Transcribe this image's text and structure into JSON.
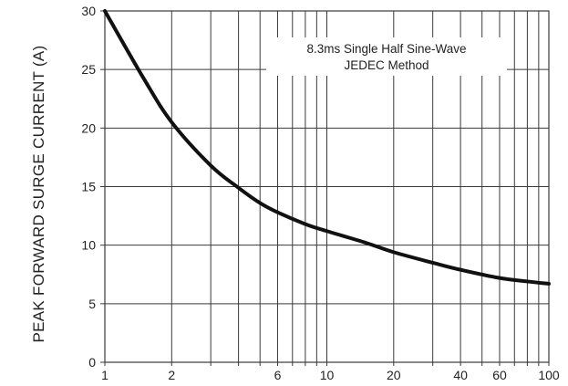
{
  "chart_data": {
    "type": "line",
    "xscale": "log",
    "xlim": [
      1,
      100
    ],
    "ylim": [
      0,
      30
    ],
    "grid": true,
    "ylabel": "PEAK FORWARD SURGE CURRENT (A)",
    "xlabel": "",
    "title": "",
    "x_tick_labels": [
      "1",
      "2",
      "6",
      "10",
      "20",
      "40",
      "60",
      "100"
    ],
    "x_tick_values": [
      1,
      2,
      6,
      10,
      20,
      40,
      60,
      100
    ],
    "y_tick_labels": [
      "0",
      "5",
      "10",
      "15",
      "20",
      "25",
      "30"
    ],
    "y_tick_values": [
      0,
      5,
      10,
      15,
      20,
      25,
      30
    ],
    "annotation": {
      "lines": [
        "8.3ms Single Half Sine-Wave",
        "JEDEC Method"
      ]
    },
    "series": [
      {
        "x": [
          1,
          1.5,
          2,
          3,
          4,
          5,
          6,
          8,
          10,
          15,
          20,
          30,
          40,
          60,
          80,
          100
        ],
        "values": [
          30,
          24.2,
          20.5,
          16.8,
          14.9,
          13.6,
          12.8,
          11.8,
          11.2,
          10.2,
          9.4,
          8.5,
          7.9,
          7.2,
          6.9,
          6.7
        ]
      }
    ],
    "colors": {
      "line": "#111111",
      "grid": "#3a3a3a",
      "text": "#222222"
    }
  }
}
